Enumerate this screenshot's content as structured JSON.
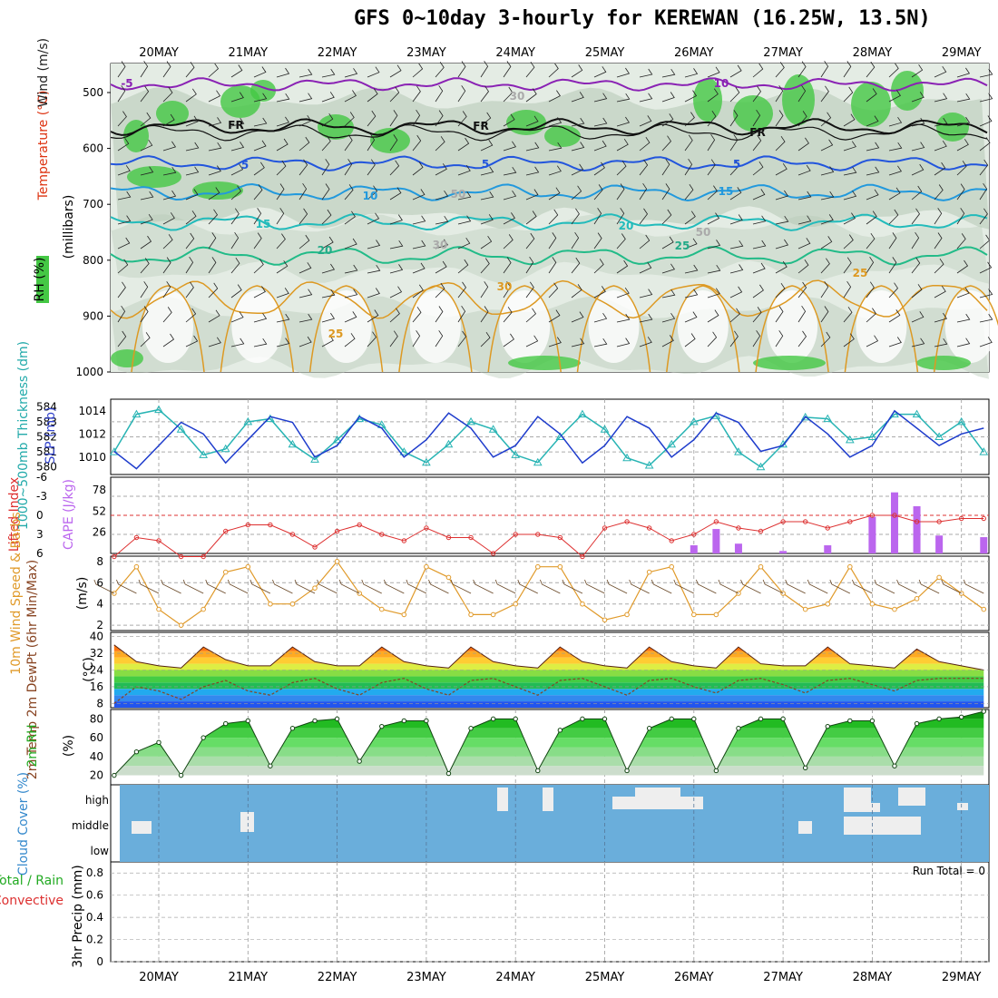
{
  "title": "GFS 0~10day 3-hourly for KEREWAN (16.25W, 13.5N)",
  "dates": [
    "20MAY",
    "21MAY",
    "22MAY",
    "23MAY",
    "24MAY",
    "25MAY",
    "26MAY",
    "27MAY",
    "28MAY",
    "29MAY"
  ],
  "colors": {
    "rh_green": "#44c844",
    "rh_gray": "#b4c8b4",
    "slp": "#1e3ccc",
    "thickness": "#28b4b4",
    "li": "#dd3030",
    "cape": "#bb66ee",
    "wind": "#e09a2a",
    "temp_hot": "#e03010",
    "dewpt": "#884422",
    "rh2m": "#22bb22",
    "cloud": "#6aaedb",
    "cloud_clear": "#eeeeee"
  },
  "panels": {
    "upper": {
      "labels": [
        "Temperature (°C)",
        "Wind (m/s)",
        "RH (%)"
      ],
      "ylabel": "(millibars)",
      "yticks": [
        "500",
        "600",
        "700",
        "800",
        "900",
        "1000"
      ],
      "contour_labels": [
        "-5",
        "FR",
        "FR",
        "FR",
        "5",
        "5",
        "5",
        "10",
        "10",
        "15",
        "15",
        "20",
        "20",
        "25",
        "25",
        "25",
        "30",
        "30",
        "30",
        "50",
        "50"
      ]
    },
    "slp": {
      "label_left": "1000~500mb Thickness (dm)",
      "label_right": "SLP (mb)",
      "yticks_left": [
        "584",
        "583",
        "582",
        "581",
        "580"
      ],
      "yticks_right": [
        "1014",
        "1012",
        "1010"
      ]
    },
    "cape": {
      "label_left": "Lifted Index",
      "label_right": "CAPE (J/kg)",
      "yticks_left": [
        "-6",
        "-3",
        "0",
        "3",
        "6"
      ],
      "yticks_right": [
        "78",
        "52",
        "26"
      ]
    },
    "wind10": {
      "label": "10m Wind Speed & Barbs",
      "unit": "(m/s)",
      "yticks": [
        "8",
        "6",
        "4",
        "2"
      ]
    },
    "temp2m": {
      "label": "2m Temp 2m DewPt (6hr Min/Max)",
      "unit": "(°C)",
      "yticks": [
        "40",
        "32",
        "24",
        "16",
        "8"
      ]
    },
    "rh2m": {
      "label": "2m RH",
      "unit": "(%)",
      "yticks": [
        "80",
        "60",
        "40",
        "20"
      ]
    },
    "cloud": {
      "label": "Cloud Cover (%)",
      "levels": [
        "high",
        "middle",
        "low"
      ]
    },
    "precip": {
      "label_left": "3hr Precip (mm)",
      "label_total": "Total / Rain",
      "label_conv": "Convective",
      "yticks": [
        "0.8",
        "0.6",
        "0.4",
        "0.2",
        "0"
      ],
      "run_total": "Run Total = 0"
    }
  },
  "chart_data": [
    {
      "type": "line",
      "title": "1000~500mb Thickness (dm) / SLP (mb)",
      "x": [
        "19MAY 12",
        "19MAY 18",
        "20MAY 00",
        "20MAY 06",
        "20MAY 12",
        "20MAY 18",
        "21MAY 00",
        "21MAY 06",
        "21MAY 12",
        "21MAY 18",
        "22MAY 00",
        "22MAY 06",
        "22MAY 12",
        "22MAY 18",
        "23MAY 00",
        "23MAY 06",
        "23MAY 12",
        "23MAY 18",
        "24MAY 00",
        "24MAY 06",
        "24MAY 12",
        "24MAY 18",
        "25MAY 00",
        "25MAY 06",
        "25MAY 12",
        "25MAY 18",
        "26MAY 00",
        "26MAY 06",
        "26MAY 12",
        "26MAY 18",
        "27MAY 00",
        "27MAY 06",
        "27MAY 12",
        "27MAY 18",
        "28MAY 00",
        "28MAY 06",
        "28MAY 12",
        "28MAY 18",
        "29MAY 00",
        "29MAY 06"
      ],
      "series": [
        {
          "name": "SLP (mb)",
          "axis": "right",
          "values": [
            1010.5,
            1009.0,
            1011.0,
            1013.0,
            1012.0,
            1009.5,
            1011.5,
            1013.5,
            1013.0,
            1010.0,
            1011.0,
            1013.5,
            1012.5,
            1010.0,
            1011.5,
            1013.8,
            1012.5,
            1010.0,
            1011.0,
            1013.5,
            1012.0,
            1009.5,
            1011.0,
            1013.5,
            1012.5,
            1010.0,
            1011.5,
            1013.8,
            1013.0,
            1010.5,
            1011.0,
            1013.5,
            1012.0,
            1010.0,
            1011.0,
            1014.0,
            1012.5,
            1011.0,
            1012.0,
            1012.5
          ]
        },
        {
          "name": "1000~500mb Thickness (dm)",
          "axis": "left",
          "values": [
            581.0,
            583.5,
            583.8,
            582.5,
            580.8,
            581.2,
            583.0,
            583.2,
            581.5,
            580.5,
            581.8,
            583.2,
            582.8,
            581.0,
            580.3,
            581.5,
            583.0,
            582.5,
            580.8,
            580.3,
            582.0,
            583.5,
            582.5,
            580.6,
            580.1,
            581.5,
            583.0,
            583.4,
            581.0,
            580.0,
            581.5,
            583.3,
            583.2,
            581.8,
            582.0,
            583.5,
            583.5,
            582.0,
            583.0,
            581.0
          ]
        }
      ],
      "ylim_left": [
        580,
        584
      ],
      "ylim_right": [
        1009,
        1015
      ]
    },
    {
      "type": "bar",
      "title": "Lifted Index / CAPE (J/kg)",
      "x": [
        "19MAY 12",
        "19MAY 18",
        "20MAY 00",
        "20MAY 06",
        "20MAY 12",
        "20MAY 18",
        "21MAY 00",
        "21MAY 06",
        "21MAY 12",
        "21MAY 18",
        "22MAY 00",
        "22MAY 06",
        "22MAY 12",
        "22MAY 18",
        "23MAY 00",
        "23MAY 06",
        "23MAY 12",
        "23MAY 18",
        "24MAY 00",
        "24MAY 06",
        "24MAY 12",
        "24MAY 18",
        "25MAY 00",
        "25MAY 06",
        "25MAY 12",
        "25MAY 18",
        "26MAY 00",
        "26MAY 06",
        "26MAY 12",
        "26MAY 18",
        "27MAY 00",
        "27MAY 06",
        "27MAY 12",
        "27MAY 18",
        "28MAY 00",
        "28MAY 06",
        "28MAY 12",
        "28MAY 18",
        "29MAY 00",
        "29MAY 06"
      ],
      "series": [
        {
          "name": "Lifted Index",
          "axis": "left",
          "values": [
            6.5,
            3.5,
            4.0,
            6.5,
            6.5,
            2.5,
            1.5,
            1.5,
            3.0,
            5.0,
            2.5,
            1.5,
            3.0,
            4.0,
            2.0,
            3.5,
            3.5,
            6.0,
            3.0,
            3.0,
            3.5,
            6.5,
            2.0,
            1.0,
            2.0,
            4.0,
            3.0,
            1.0,
            2.0,
            2.5,
            1.0,
            1.0,
            2.0,
            1.0,
            0.0,
            0.0,
            1.0,
            1.0,
            0.5,
            0.5
          ]
        },
        {
          "name": "CAPE (J/kg)",
          "axis": "right",
          "values": [
            0,
            0,
            0,
            0,
            0,
            0,
            0,
            0,
            0,
            0,
            0,
            0,
            0,
            0,
            0,
            0,
            0,
            0,
            0,
            0,
            0,
            0,
            0,
            0,
            0,
            0,
            10,
            30,
            12,
            0,
            3,
            0,
            10,
            0,
            45,
            75,
            58,
            22,
            0,
            20
          ]
        }
      ],
      "ylim_left": [
        6,
        -6
      ],
      "ylim_right": [
        0,
        78
      ]
    },
    {
      "type": "line",
      "title": "10m Wind Speed & Barbs (m/s)",
      "x": [
        "19MAY 12",
        "19MAY 18",
        "20MAY 00",
        "20MAY 06",
        "20MAY 12",
        "20MAY 18",
        "21MAY 00",
        "21MAY 06",
        "21MAY 12",
        "21MAY 18",
        "22MAY 00",
        "22MAY 06",
        "22MAY 12",
        "22MAY 18",
        "23MAY 00",
        "23MAY 06",
        "23MAY 12",
        "23MAY 18",
        "24MAY 00",
        "24MAY 06",
        "24MAY 12",
        "24MAY 18",
        "25MAY 00",
        "25MAY 06",
        "25MAY 12",
        "25MAY 18",
        "26MAY 00",
        "26MAY 06",
        "26MAY 12",
        "26MAY 18",
        "27MAY 00",
        "27MAY 06",
        "27MAY 12",
        "27MAY 18",
        "28MAY 00",
        "28MAY 06",
        "28MAY 12",
        "28MAY 18",
        "29MAY 00",
        "29MAY 06"
      ],
      "series": [
        {
          "name": "10m Wind Speed",
          "values": [
            5,
            7.5,
            3.5,
            2,
            3.5,
            7,
            7.5,
            4,
            4,
            5.5,
            8,
            5,
            3.5,
            3,
            7.5,
            6.5,
            3,
            3,
            4,
            7.5,
            7.5,
            4,
            2.5,
            3,
            7,
            7.5,
            3,
            3,
            5,
            7.5,
            5,
            3.5,
            4,
            7.5,
            4,
            3.5,
            4.5,
            6.5,
            5,
            3.5
          ]
        }
      ],
      "ylim": [
        1.5,
        8.5
      ]
    },
    {
      "type": "area",
      "title": "2m Temp / 2m DewPt (°C)",
      "x": [
        "19MAY 12",
        "19MAY 18",
        "20MAY 00",
        "20MAY 06",
        "20MAY 12",
        "20MAY 18",
        "21MAY 00",
        "21MAY 06",
        "21MAY 12",
        "21MAY 18",
        "22MAY 00",
        "22MAY 06",
        "22MAY 12",
        "22MAY 18",
        "23MAY 00",
        "23MAY 06",
        "23MAY 12",
        "23MAY 18",
        "24MAY 00",
        "24MAY 06",
        "24MAY 12",
        "24MAY 18",
        "25MAY 00",
        "25MAY 06",
        "25MAY 12",
        "25MAY 18",
        "26MAY 00",
        "26MAY 06",
        "26MAY 12",
        "26MAY 18",
        "27MAY 00",
        "27MAY 06",
        "27MAY 12",
        "27MAY 18",
        "28MAY 00",
        "28MAY 06",
        "28MAY 12",
        "28MAY 18",
        "29MAY 00",
        "29MAY 06"
      ],
      "series": [
        {
          "name": "2m Temp",
          "values": [
            36,
            28,
            26,
            25,
            35,
            29,
            26,
            26,
            35,
            28,
            26,
            26,
            35,
            28,
            26,
            25,
            35,
            28,
            26,
            25,
            35,
            28,
            26,
            25,
            35,
            28,
            26,
            25,
            35,
            27,
            26,
            26,
            35,
            27,
            26,
            25,
            34,
            28,
            26,
            24
          ]
        },
        {
          "name": "2m DewPt",
          "values": [
            8,
            16,
            14,
            10,
            16,
            19,
            14,
            12,
            18,
            20,
            15,
            12,
            18,
            20,
            15,
            12,
            19,
            20,
            16,
            12,
            19,
            20,
            16,
            12,
            19,
            20,
            16,
            13,
            19,
            20,
            17,
            13,
            19,
            20,
            17,
            14,
            19,
            20,
            20,
            20
          ]
        }
      ],
      "ylim": [
        6,
        42
      ]
    },
    {
      "type": "area",
      "title": "2m RH (%)",
      "x": [
        "19MAY 12",
        "19MAY 18",
        "20MAY 00",
        "20MAY 06",
        "20MAY 12",
        "20MAY 18",
        "21MAY 00",
        "21MAY 06",
        "21MAY 12",
        "21MAY 18",
        "22MAY 00",
        "22MAY 06",
        "22MAY 12",
        "22MAY 18",
        "23MAY 00",
        "23MAY 06",
        "23MAY 12",
        "23MAY 18",
        "24MAY 00",
        "24MAY 06",
        "24MAY 12",
        "24MAY 18",
        "25MAY 00",
        "25MAY 06",
        "25MAY 12",
        "25MAY 18",
        "26MAY 00",
        "26MAY 06",
        "26MAY 12",
        "26MAY 18",
        "27MAY 00",
        "27MAY 06",
        "27MAY 12",
        "27MAY 18",
        "28MAY 00",
        "28MAY 06",
        "28MAY 12",
        "28MAY 18",
        "29MAY 00",
        "29MAY 06"
      ],
      "series": [
        {
          "name": "2m RH",
          "values": [
            20,
            45,
            55,
            20,
            60,
            75,
            78,
            30,
            70,
            78,
            80,
            35,
            72,
            78,
            78,
            22,
            70,
            80,
            80,
            25,
            68,
            80,
            80,
            25,
            70,
            80,
            80,
            25,
            70,
            80,
            80,
            28,
            72,
            78,
            78,
            30,
            75,
            80,
            82,
            88
          ]
        }
      ],
      "ylim": [
        10,
        90
      ]
    },
    {
      "type": "bar",
      "title": "3hr Precip (mm)",
      "x": [],
      "series": [
        {
          "name": "Total / Rain",
          "values": []
        },
        {
          "name": "Convective",
          "values": []
        }
      ],
      "ylim": [
        0,
        0.9
      ]
    }
  ]
}
